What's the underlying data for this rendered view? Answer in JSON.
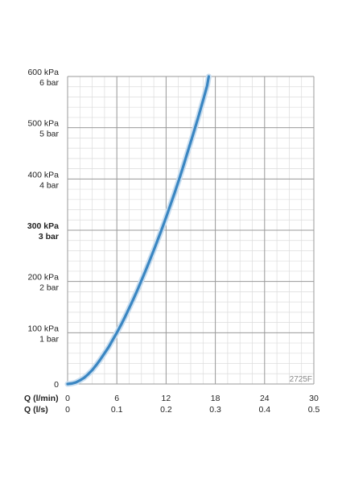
{
  "chart_data": {
    "type": "line",
    "code": "2725F",
    "x_axis_labels": [
      "Q (l/min)",
      "Q (l/s)"
    ],
    "x_ticks": [
      {
        "lmin": "0",
        "ls": "0",
        "value": 0
      },
      {
        "lmin": "6",
        "ls": "0.1",
        "value": 6
      },
      {
        "lmin": "12",
        "ls": "0.2",
        "value": 12
      },
      {
        "lmin": "18",
        "ls": "0.3",
        "value": 18
      },
      {
        "lmin": "24",
        "ls": "0.4",
        "value": 24
      },
      {
        "lmin": "30",
        "ls": "0.5",
        "value": 30
      }
    ],
    "y_ticks": [
      {
        "kpa": "0",
        "bar": "",
        "value": 0,
        "bold": false
      },
      {
        "kpa": "100 kPa",
        "bar": "1 bar",
        "value": 100,
        "bold": false
      },
      {
        "kpa": "200 kPa",
        "bar": "2 bar",
        "value": 200,
        "bold": false
      },
      {
        "kpa": "300 kPa",
        "bar": "3 bar",
        "value": 300,
        "bold": true
      },
      {
        "kpa": "400 kPa",
        "bar": "4 bar",
        "value": 400,
        "bold": false
      },
      {
        "kpa": "500 kPa",
        "bar": "5 bar",
        "value": 500,
        "bold": false
      },
      {
        "kpa": "600 kPa",
        "bar": "6 bar",
        "value": 600,
        "bold": false
      }
    ],
    "xlim": [
      0,
      30
    ],
    "ylim": [
      0,
      600
    ],
    "grid": true,
    "series": [
      {
        "color": "#3a86c2",
        "x": [
          0,
          0.5,
          1,
          1.5,
          2,
          2.5,
          3,
          3.5,
          4,
          4.5,
          5,
          5.5,
          6,
          6.5,
          7,
          7.5,
          8,
          8.5,
          9,
          9.5,
          10,
          10.5,
          11,
          11.5,
          12,
          12.5,
          13,
          13.5,
          14,
          14.5,
          15,
          15.5,
          16,
          16.5,
          17,
          17.2
        ],
        "y": [
          0,
          1,
          3,
          7,
          12,
          19,
          27,
          37,
          48,
          60,
          72,
          86,
          100,
          115,
          131,
          148,
          165,
          183,
          202,
          221,
          241,
          261,
          282,
          303,
          325,
          348,
          371,
          395,
          420,
          446,
          472,
          498,
          525,
          553,
          582,
          600
        ]
      }
    ]
  }
}
